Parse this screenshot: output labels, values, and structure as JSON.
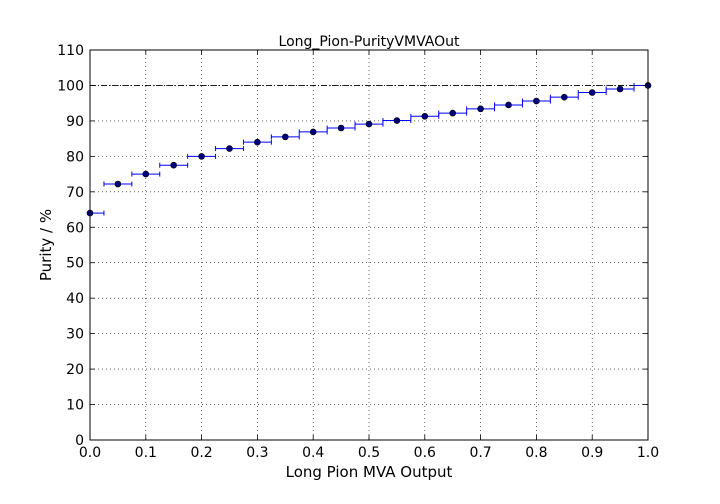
{
  "chart_data": {
    "type": "scatter",
    "title": "Long_Pion-PurityVMVAOut",
    "xlabel": "Long Pion MVA Output",
    "ylabel": "Purity / %",
    "xlim": [
      0.0,
      1.0
    ],
    "ylim": [
      0,
      110
    ],
    "x_ticks": [
      "0.0",
      "0.1",
      "0.2",
      "0.3",
      "0.4",
      "0.5",
      "0.6",
      "0.7",
      "0.8",
      "0.9",
      "1.0"
    ],
    "y_ticks": [
      "0",
      "10",
      "20",
      "30",
      "40",
      "50",
      "60",
      "70",
      "80",
      "90",
      "100",
      "110"
    ],
    "grid": true,
    "reference_line": {
      "y": 100,
      "style": "dash-dot"
    },
    "bin_half_width": 0.025,
    "series": [
      {
        "marker_color": "#00007f",
        "errorbar_color": "#0000ff",
        "x": [
          0.0,
          0.05,
          0.1,
          0.15,
          0.2,
          0.25,
          0.3,
          0.35,
          0.4,
          0.45,
          0.5,
          0.55,
          0.6,
          0.65,
          0.7,
          0.75,
          0.8,
          0.85,
          0.9,
          0.95,
          1.0
        ],
        "y": [
          64.0,
          72.2,
          75.0,
          77.5,
          80.0,
          82.2,
          84.0,
          85.5,
          86.9,
          88.0,
          89.1,
          90.1,
          91.3,
          92.2,
          93.4,
          94.5,
          95.6,
          96.7,
          98.0,
          99.0,
          100.0
        ]
      }
    ]
  }
}
